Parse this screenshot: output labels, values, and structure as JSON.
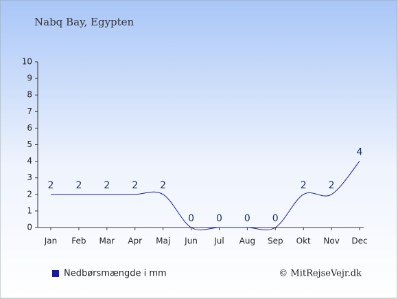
{
  "chart_data": {
    "type": "line",
    "title": "Nabq Bay, Egypten",
    "categories": [
      "Jan",
      "Feb",
      "Mar",
      "Apr",
      "Maj",
      "Jun",
      "Jul",
      "Aug",
      "Sep",
      "Okt",
      "Nov",
      "Dec"
    ],
    "series": [
      {
        "name": "Nedbørsmængde i mm",
        "color": "#1a1aa0",
        "values": [
          2,
          2,
          2,
          2,
          2,
          0,
          0,
          0,
          0,
          2,
          2,
          4
        ]
      }
    ],
    "ylim": [
      0,
      10
    ],
    "yticks": [
      0,
      1,
      2,
      3,
      4,
      5,
      6,
      7,
      8,
      9,
      10
    ],
    "credit": "© MitRejseVejr.dk"
  }
}
